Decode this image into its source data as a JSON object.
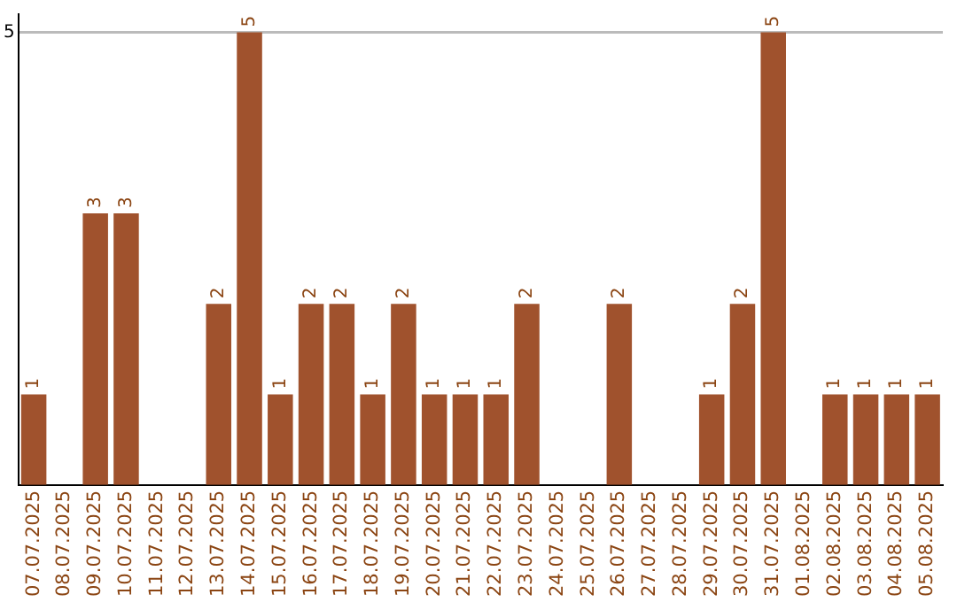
{
  "chart_data": {
    "type": "bar",
    "categories": [
      "07.07.2025",
      "08.07.2025",
      "09.07.2025",
      "10.07.2025",
      "11.07.2025",
      "12.07.2025",
      "13.07.2025",
      "14.07.2025",
      "15.07.2025",
      "16.07.2025",
      "17.07.2025",
      "18.07.2025",
      "19.07.2025",
      "20.07.2025",
      "21.07.2025",
      "22.07.2025",
      "23.07.2025",
      "24.07.2025",
      "25.07.2025",
      "26.07.2025",
      "27.07.2025",
      "28.07.2025",
      "29.07.2025",
      "30.07.2025",
      "31.07.2025",
      "01.08.2025",
      "02.08.2025",
      "03.08.2025",
      "04.08.2025",
      "05.08.2025"
    ],
    "values": [
      1,
      0,
      3,
      3,
      0,
      0,
      2,
      5,
      1,
      2,
      2,
      1,
      2,
      1,
      1,
      1,
      2,
      0,
      0,
      2,
      0,
      0,
      1,
      2,
      5,
      0,
      1,
      1,
      1,
      1
    ],
    "value_labels": [
      "1",
      null,
      "3",
      "3",
      null,
      null,
      "2",
      "5",
      "1",
      "2",
      "2",
      "1",
      "2",
      "1",
      "1",
      "1",
      "2",
      null,
      null,
      "2",
      null,
      null,
      "1",
      "2",
      "5",
      null,
      "1",
      "1",
      "1",
      "1"
    ],
    "color": "#a0522d",
    "ylim": [
      0,
      5.2
    ],
    "yticks": [
      5
    ],
    "grid": "y",
    "legend": false
  }
}
